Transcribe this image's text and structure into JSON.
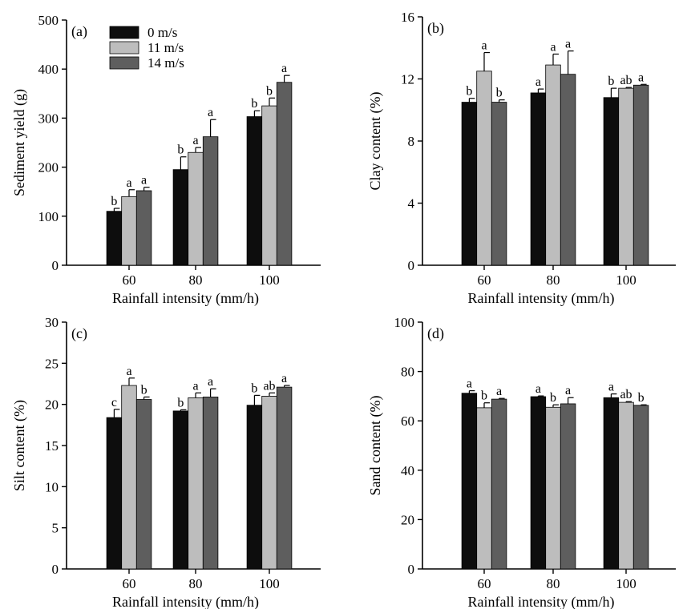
{
  "legend": {
    "entries": [
      {
        "label": "0 m/s",
        "color": "#0d0d0d"
      },
      {
        "label": "11 m/s",
        "color": "#bdbdbd"
      },
      {
        "label": "14 m/s",
        "color": "#5e5e5e"
      }
    ]
  },
  "chart_data": [
    {
      "panel": "(a)",
      "type": "bar",
      "categories": [
        "60",
        "80",
        "100"
      ],
      "xlabel": "Rainfall intensity (mm/h)",
      "ylabel": "Sediment yield (g)",
      "ylim": [
        0,
        500
      ],
      "yticks": [
        "0",
        "100",
        "200",
        "300",
        "400",
        "500"
      ],
      "series": [
        {
          "name": "0 m/s",
          "values": [
            110,
            195,
            303
          ],
          "errors": [
            6,
            26,
            12
          ],
          "letters": [
            "b",
            "b",
            "b"
          ]
        },
        {
          "name": "11 m/s",
          "values": [
            140,
            230,
            325
          ],
          "errors": [
            14,
            10,
            16
          ],
          "letters": [
            "a",
            "a",
            "b"
          ]
        },
        {
          "name": "14 m/s",
          "values": [
            152,
            262,
            373
          ],
          "errors": [
            7,
            35,
            14
          ],
          "letters": [
            "a",
            "a",
            "a"
          ]
        }
      ]
    },
    {
      "panel": "(b)",
      "type": "bar",
      "categories": [
        "60",
        "80",
        "100"
      ],
      "xlabel": "Rainfall intensity (mm/h)",
      "ylabel": "Clay content (%)",
      "ylim": [
        0,
        16
      ],
      "yticks": [
        "0",
        "4",
        "8",
        "12",
        "16"
      ],
      "series": [
        {
          "name": "0 m/s",
          "values": [
            10.5,
            11.1,
            10.8
          ],
          "errors": [
            0.25,
            0.25,
            0.6
          ],
          "letters": [
            "b",
            "a",
            "b"
          ]
        },
        {
          "name": "11 m/s",
          "values": [
            12.5,
            12.9,
            11.4
          ],
          "errors": [
            1.2,
            0.7,
            0.05
          ],
          "letters": [
            "a",
            "a",
            "ab"
          ]
        },
        {
          "name": "14 m/s",
          "values": [
            10.5,
            12.3,
            11.6
          ],
          "errors": [
            0.15,
            1.5,
            0.05
          ],
          "letters": [
            "b",
            "a",
            "a"
          ]
        }
      ]
    },
    {
      "panel": "(c)",
      "type": "bar",
      "categories": [
        "60",
        "80",
        "100"
      ],
      "xlabel": "Rainfall intensity (mm/h)",
      "ylabel": "Silt content (%)",
      "ylim": [
        0,
        30
      ],
      "yticks": [
        "0",
        "5",
        "10",
        "15",
        "20",
        "25",
        "30"
      ],
      "series": [
        {
          "name": "0 m/s",
          "values": [
            18.4,
            19.2,
            19.9
          ],
          "errors": [
            1.0,
            0.15,
            1.2
          ],
          "letters": [
            "c",
            "b",
            "b"
          ]
        },
        {
          "name": "11 m/s",
          "values": [
            22.3,
            20.8,
            21.0
          ],
          "errors": [
            0.9,
            0.6,
            0.4
          ],
          "letters": [
            "a",
            "a",
            "ab"
          ]
        },
        {
          "name": "14 m/s",
          "values": [
            20.6,
            20.9,
            22.1
          ],
          "errors": [
            0.3,
            1.0,
            0.2
          ],
          "letters": [
            "b",
            "a",
            "a"
          ]
        }
      ]
    },
    {
      "panel": "(d)",
      "type": "bar",
      "categories": [
        "60",
        "80",
        "100"
      ],
      "xlabel": "Rainfall intensity (mm/h)",
      "ylabel": "Sand content (%)",
      "ylim": [
        0,
        100
      ],
      "yticks": [
        "0",
        "20",
        "40",
        "60",
        "80",
        "100"
      ],
      "series": [
        {
          "name": "0 m/s",
          "values": [
            71.2,
            69.8,
            69.4
          ],
          "errors": [
            1.0,
            0.3,
            1.5
          ],
          "letters": [
            "a",
            "a",
            "a"
          ]
        },
        {
          "name": "11 m/s",
          "values": [
            65.3,
            65.5,
            67.5
          ],
          "errors": [
            2.0,
            1.0,
            0.3
          ],
          "letters": [
            "b",
            "b",
            "ab"
          ]
        },
        {
          "name": "14 m/s",
          "values": [
            68.8,
            66.9,
            66.3
          ],
          "errors": [
            0.3,
            2.5,
            0.2
          ],
          "letters": [
            "a",
            "a",
            "b"
          ]
        }
      ]
    }
  ]
}
